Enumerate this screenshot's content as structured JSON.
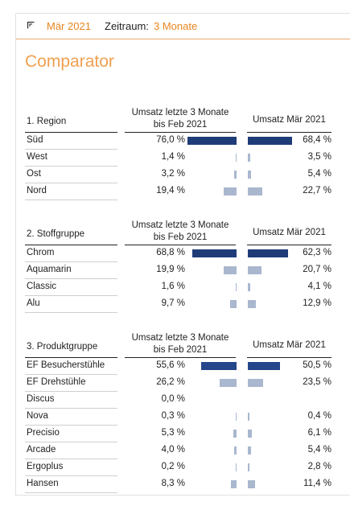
{
  "header": {
    "date_label": "Mär 2021",
    "period_label": "Zeitraum:",
    "period_value": "3 Monate",
    "expand_icon": "expand-corner-icon"
  },
  "title": "Comparator",
  "colors": {
    "accent": "#e8851f",
    "bar_top": "#1f3c78",
    "bar_mid": "#24468a",
    "bar_other": "#a9b7cf"
  },
  "sections": [
    {
      "title": "1. Region",
      "col1": "Umsatz letzte 3 Monate bis Feb 2021",
      "col2": "Umsatz Mär 2021",
      "rows": [
        {
          "name": "Süd",
          "v1": "76,0 %",
          "p1": 76.0,
          "v2": "68,4 %",
          "p2": 68.4,
          "top": true
        },
        {
          "name": "West",
          "v1": "1,4 %",
          "p1": 1.4,
          "v2": "3,5 %",
          "p2": 3.5
        },
        {
          "name": "Ost",
          "v1": "3,2 %",
          "p1": 3.2,
          "v2": "5,4 %",
          "p2": 5.4
        },
        {
          "name": "Nord",
          "v1": "19,4 %",
          "p1": 19.4,
          "v2": "22,7 %",
          "p2": 22.7
        }
      ]
    },
    {
      "title": "2. Stoffgruppe",
      "col1": "Umsatz letzte 3 Monate bis Feb 2021",
      "col2": "Umsatz Mär 2021",
      "rows": [
        {
          "name": "Chrom",
          "v1": "68,8 %",
          "p1": 68.8,
          "v2": "62,3 %",
          "p2": 62.3,
          "top": true
        },
        {
          "name": "Aquamarin",
          "v1": "19,9 %",
          "p1": 19.9,
          "v2": "20,7 %",
          "p2": 20.7
        },
        {
          "name": "Classic",
          "v1": "1,6 %",
          "p1": 1.6,
          "v2": "4,1 %",
          "p2": 4.1
        },
        {
          "name": "Alu",
          "v1": "9,7 %",
          "p1": 9.7,
          "v2": "12,9 %",
          "p2": 12.9
        }
      ]
    },
    {
      "title": "3. Produktgruppe",
      "col1": "Umsatz letzte 3 Monate bis Feb 2021",
      "col2": "Umsatz Mär 2021",
      "rows": [
        {
          "name": "EF Besucherstühle",
          "v1": "55,6 %",
          "p1": 55.6,
          "v2": "50,5 %",
          "p2": 50.5,
          "mid": true
        },
        {
          "name": "EF Drehstühle",
          "v1": "26,2 %",
          "p1": 26.2,
          "v2": "23,5 %",
          "p2": 23.5
        },
        {
          "name": "Discus",
          "v1": "0,0 %",
          "p1": 0.0,
          "v2": "",
          "p2": 0
        },
        {
          "name": "Nova",
          "v1": "0,3 %",
          "p1": 0.3,
          "v2": "0,4 %",
          "p2": 0.4
        },
        {
          "name": "Precisio",
          "v1": "5,3 %",
          "p1": 5.3,
          "v2": "6,1 %",
          "p2": 6.1
        },
        {
          "name": "Arcade",
          "v1": "4,0 %",
          "p1": 4.0,
          "v2": "5,4 %",
          "p2": 5.4
        },
        {
          "name": "Ergoplus",
          "v1": "0,2 %",
          "p1": 0.2,
          "v2": "2,8 %",
          "p2": 2.8
        },
        {
          "name": "Hansen",
          "v1": "8,3 %",
          "p1": 8.3,
          "v2": "11,4 %",
          "p2": 11.4
        }
      ]
    }
  ]
}
